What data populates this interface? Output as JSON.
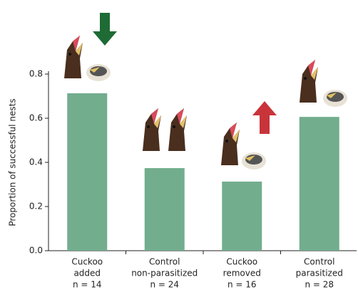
{
  "chart_data": {
    "type": "bar",
    "y_label": "Proportion of successful nests",
    "categories": [
      [
        "Cuckoo",
        "added",
        "n = 14"
      ],
      [
        "Control",
        "non-parasitized",
        "n = 24"
      ],
      [
        "Cuckoo",
        "removed",
        "n = 16"
      ],
      [
        "Control",
        "parasitized",
        "n = 28"
      ]
    ],
    "values": [
      0.713,
      0.374,
      0.313,
      0.606
    ],
    "color": "#72ad8e",
    "ylim": [
      0,
      0.8
    ],
    "yticks": [
      {
        "value": 0,
        "label": "0.0"
      },
      0.2,
      0.4,
      0.6,
      0.8
    ]
  }
}
